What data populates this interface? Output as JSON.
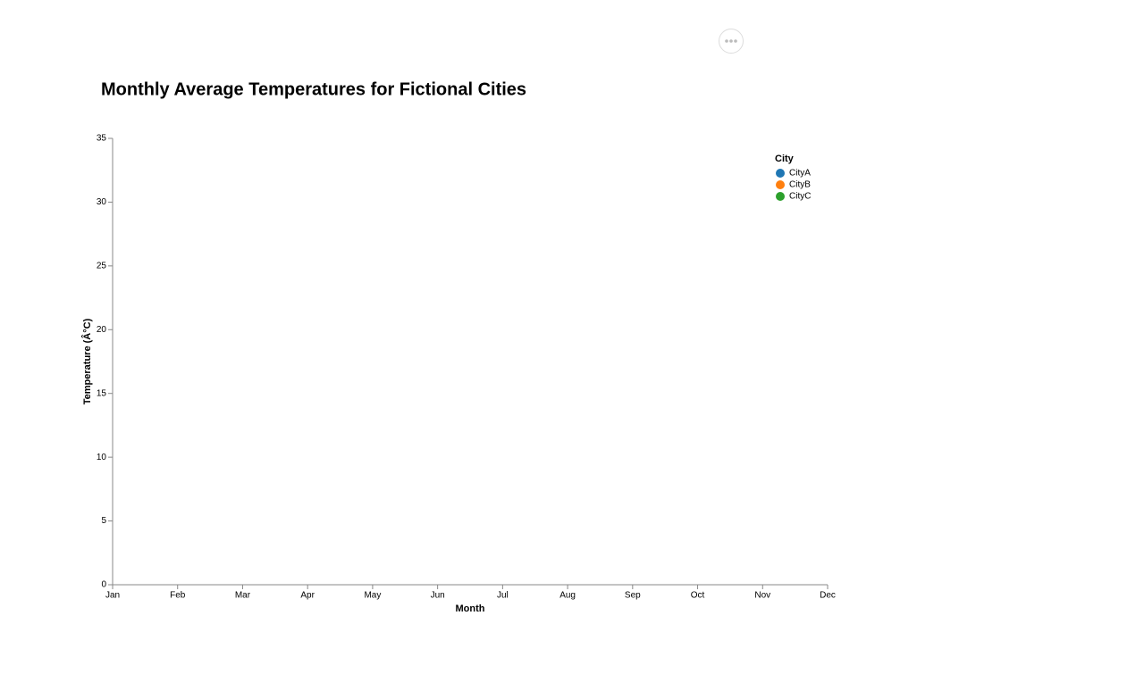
{
  "chart_data": {
    "type": "line",
    "title": "Monthly Average Temperatures for Fictional Cities",
    "x_label": "Month",
    "y_label": "Temperature (Â°C)",
    "categories": [
      "Jan",
      "Feb",
      "Mar",
      "Apr",
      "May",
      "Jun",
      "Jul",
      "Aug",
      "Sep",
      "Oct",
      "Nov",
      "Dec"
    ],
    "series": [
      {
        "name": "CityA",
        "color": "#1f77b4",
        "values": [
          null,
          null,
          null,
          null,
          null,
          null,
          null,
          null,
          null,
          null,
          null,
          null
        ]
      },
      {
        "name": "CityB",
        "color": "#ff7f0e",
        "values": [
          null,
          null,
          null,
          null,
          null,
          null,
          null,
          null,
          null,
          null,
          null,
          null
        ]
      },
      {
        "name": "CityC",
        "color": "#2ca02c",
        "values": [
          null,
          null,
          null,
          null,
          null,
          null,
          null,
          null,
          null,
          null,
          null,
          null
        ]
      }
    ],
    "legend_title": "City",
    "legend": "top-right",
    "ylim": [
      0,
      35
    ],
    "yticks": [
      0,
      5,
      10,
      15,
      20,
      25,
      30,
      35
    ],
    "grid": false
  }
}
